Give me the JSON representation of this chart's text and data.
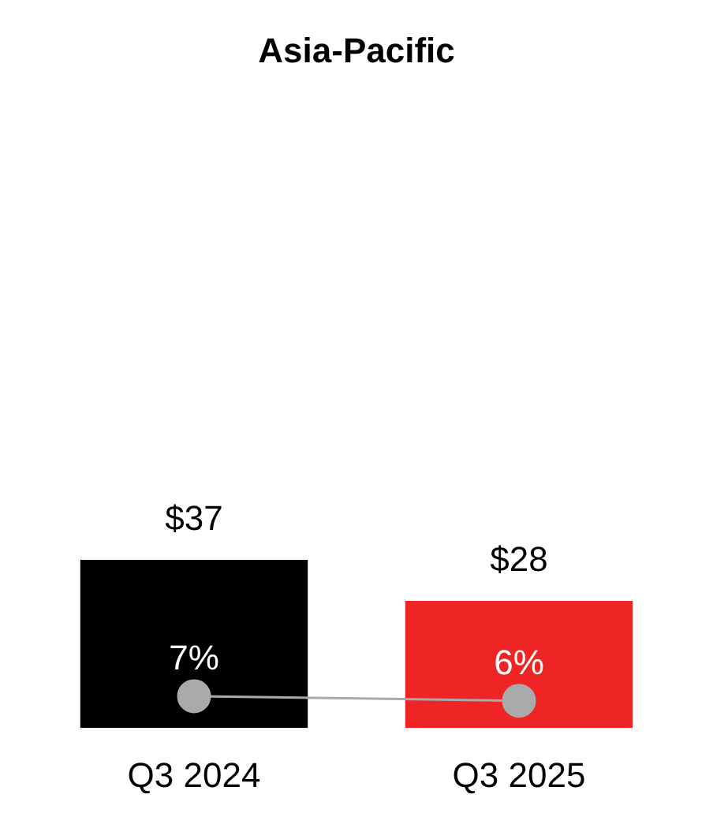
{
  "chart_data": {
    "type": "bar",
    "title": "Asia-Pacific",
    "categories": [
      "Q3 2024",
      "Q3 2025"
    ],
    "series": [
      {
        "colors": [
          "#000000",
          "#ee2524"
        ],
        "values": [
          37,
          28
        ],
        "value_labels": [
          "$37",
          "$28"
        ]
      },
      {
        "type": "line",
        "color": "#aaaaaa",
        "values": [
          7,
          6
        ],
        "value_labels": [
          "7%",
          "6%"
        ]
      }
    ],
    "tick_labels": "x",
    "grid": false,
    "legend": false,
    "marker": "circle"
  }
}
